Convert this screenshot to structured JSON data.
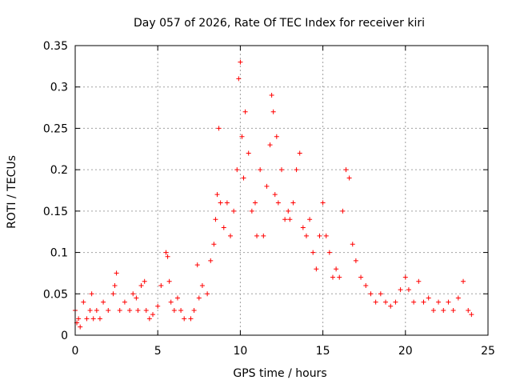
{
  "chart_data": {
    "type": "scatter",
    "title": "Day 057 of 2026, Rate Of TEC Index for receiver kiri",
    "xlabel": "GPS time / hours",
    "ylabel": "ROTI / TECUs",
    "xlim": [
      0,
      25
    ],
    "ylim": [
      0,
      0.35
    ],
    "x_ticks": [
      "0",
      "5",
      "10",
      "15",
      "20",
      "25"
    ],
    "y_ticks": [
      "0",
      "0.05",
      "0.1",
      "0.15",
      "0.2",
      "0.25",
      "0.3",
      "0.35"
    ],
    "grid": true,
    "legend": "none",
    "marker": "+",
    "color": "#ff0000",
    "series": [
      {
        "x": [
          0.0,
          0.1,
          0.2,
          0.3,
          0.5,
          0.7,
          0.9,
          1.0,
          1.1,
          1.3,
          1.5,
          1.7,
          2.0,
          2.3,
          2.4,
          2.5,
          2.7,
          3.0,
          3.3,
          3.5,
          3.7,
          3.8,
          4.0,
          4.2,
          4.3,
          4.5,
          4.7,
          5.0,
          5.2,
          5.5,
          5.6,
          5.7,
          5.8,
          6.0,
          6.2,
          6.4,
          6.6,
          7.0,
          7.2,
          7.4,
          7.5,
          7.7,
          8.0,
          8.2,
          8.4,
          8.5,
          8.6,
          8.7,
          8.8,
          9.0,
          9.2,
          9.4,
          9.6,
          9.8,
          9.9,
          10.0,
          10.1,
          10.2,
          10.3,
          10.5,
          10.7,
          10.9,
          11.0,
          11.2,
          11.4,
          11.6,
          11.8,
          11.9,
          12.0,
          12.1,
          12.2,
          12.3,
          12.5,
          12.7,
          12.9,
          13.0,
          13.2,
          13.4,
          13.6,
          13.8,
          14.0,
          14.2,
          14.4,
          14.6,
          14.8,
          15.0,
          15.2,
          15.4,
          15.6,
          15.8,
          16.0,
          16.2,
          16.4,
          16.6,
          16.8,
          17.0,
          17.3,
          17.6,
          17.9,
          18.2,
          18.5,
          18.8,
          19.1,
          19.4,
          19.7,
          20.0,
          20.2,
          20.5,
          20.8,
          21.1,
          21.4,
          21.7,
          22.0,
          22.3,
          22.6,
          22.9,
          23.2,
          23.5,
          23.8,
          24.0
        ],
        "y": [
          0.03,
          0.015,
          0.02,
          0.01,
          0.04,
          0.02,
          0.03,
          0.05,
          0.02,
          0.03,
          0.02,
          0.04,
          0.03,
          0.05,
          0.06,
          0.075,
          0.03,
          0.04,
          0.03,
          0.05,
          0.045,
          0.03,
          0.06,
          0.065,
          0.03,
          0.02,
          0.025,
          0.035,
          0.06,
          0.1,
          0.095,
          0.065,
          0.04,
          0.03,
          0.045,
          0.03,
          0.02,
          0.02,
          0.03,
          0.085,
          0.045,
          0.06,
          0.05,
          0.09,
          0.11,
          0.14,
          0.17,
          0.25,
          0.16,
          0.13,
          0.16,
          0.12,
          0.15,
          0.2,
          0.31,
          0.33,
          0.24,
          0.19,
          0.27,
          0.22,
          0.15,
          0.16,
          0.12,
          0.2,
          0.12,
          0.18,
          0.23,
          0.29,
          0.27,
          0.17,
          0.24,
          0.16,
          0.2,
          0.14,
          0.15,
          0.14,
          0.16,
          0.2,
          0.22,
          0.13,
          0.12,
          0.14,
          0.1,
          0.08,
          0.12,
          0.16,
          0.12,
          0.1,
          0.07,
          0.08,
          0.07,
          0.15,
          0.2,
          0.19,
          0.11,
          0.09,
          0.07,
          0.06,
          0.05,
          0.04,
          0.05,
          0.04,
          0.035,
          0.04,
          0.055,
          0.07,
          0.055,
          0.04,
          0.065,
          0.04,
          0.045,
          0.03,
          0.04,
          0.03,
          0.04,
          0.03,
          0.045,
          0.065,
          0.03,
          0.025
        ]
      }
    ]
  }
}
